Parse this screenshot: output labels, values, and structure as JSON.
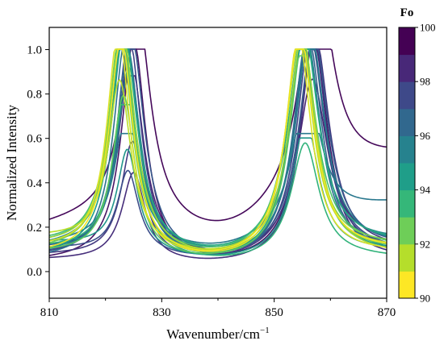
{
  "chart_data": {
    "type": "line",
    "xlabel": "Wavenumber/cm",
    "xlabel_sup": "−1",
    "ylabel": "Normalized Intensity",
    "xlim": [
      810,
      870
    ],
    "ylim": [
      -0.12,
      1.1
    ],
    "x_ticks": [
      810,
      830,
      850,
      870
    ],
    "x_tick_labels": [
      "810",
      "830",
      "850",
      "870"
    ],
    "y_ticks": [
      0.0,
      0.2,
      0.4,
      0.6,
      0.8,
      1.0
    ],
    "y_tick_labels": [
      "0.0",
      "0.2",
      "0.4",
      "0.6",
      "0.8",
      "1.0"
    ],
    "grid": false,
    "colorbar": {
      "title": "Fo",
      "min": 90,
      "max": 100,
      "tick_values": [
        90,
        92,
        94,
        96,
        98,
        100
      ],
      "tick_labels": [
        "90",
        "92",
        "94",
        "96",
        "98",
        "100"
      ],
      "colormap": [
        "#fde725",
        "#b5de2b",
        "#6ece58",
        "#35b779",
        "#1f9e89",
        "#26828e",
        "#31688e",
        "#3e4989",
        "#482878",
        "#440154"
      ]
    },
    "series": [
      {
        "fo": 99.8,
        "peak1": [
          825.5,
          1.0,
          2.9
        ],
        "peak2": [
          857.5,
          1.0,
          3.3
        ],
        "base": [
          0.2,
          0.5
        ]
      },
      {
        "fo": 99.5,
        "peak1": [
          825.0,
          1.0,
          2.6
        ],
        "peak2": [
          857.0,
          1.0,
          3.0
        ],
        "base": [
          0.04,
          0.06
        ]
      },
      {
        "fo": 99.0,
        "peak1": [
          824.5,
          0.88,
          2.7
        ],
        "peak2": [
          856.8,
          0.77,
          3.2
        ],
        "base": [
          0.08,
          0.12
        ]
      },
      {
        "fo": 98.7,
        "peak1": [
          825.0,
          0.4,
          2.5
        ],
        "peak2": [
          857.0,
          1.0,
          2.9
        ],
        "base": [
          0.05,
          0.05
        ]
      },
      {
        "fo": 98.3,
        "peak1": [
          824.8,
          0.52,
          2.4
        ],
        "peak2": [
          857.2,
          1.0,
          3.1
        ],
        "base": [
          0.07,
          0.09
        ]
      },
      {
        "fo": 98.0,
        "peak1": [
          824.2,
          1.0,
          2.6
        ],
        "peak2": [
          856.5,
          1.0,
          3.0
        ],
        "base": [
          0.06,
          0.08
        ]
      },
      {
        "fo": 97.6,
        "peak1": [
          824.0,
          0.37,
          2.3
        ],
        "peak2": [
          856.3,
          1.0,
          3.2
        ],
        "base": [
          0.1,
          0.08
        ]
      },
      {
        "fo": 97.2,
        "peak1": [
          824.6,
          1.0,
          2.8
        ],
        "peak2": [
          857.0,
          0.99,
          3.1
        ],
        "base": [
          0.06,
          0.1
        ]
      },
      {
        "fo": 96.8,
        "peak1": [
          824.0,
          0.92,
          2.5
        ],
        "peak2": [
          856.0,
          1.0,
          3.0
        ],
        "base": [
          0.09,
          0.07
        ]
      },
      {
        "fo": 96.3,
        "peak1": [
          823.6,
          1.0,
          2.6
        ],
        "peak2": [
          855.8,
          0.98,
          2.9
        ],
        "base": [
          0.05,
          0.09
        ]
      },
      {
        "fo": 96.0,
        "peak1": [
          823.8,
          0.59,
          2.5
        ],
        "peak2": [
          855.8,
          0.62,
          3.0
        ],
        "base": [
          0.12,
          0.3
        ]
      },
      {
        "fo": 95.7,
        "peak1": [
          824.2,
          0.84,
          2.6
        ],
        "peak2": [
          856.4,
          1.0,
          3.1
        ],
        "base": [
          0.08,
          0.11
        ]
      },
      {
        "fo": 95.3,
        "peak1": [
          823.4,
          1.0,
          2.7
        ],
        "peak2": [
          855.4,
          1.0,
          3.0
        ],
        "base": [
          0.1,
          0.13
        ]
      },
      {
        "fo": 94.8,
        "peak1": [
          823.9,
          0.45,
          2.2
        ],
        "peak2": [
          855.6,
          0.6,
          2.8
        ],
        "base": [
          0.13,
          0.09
        ]
      },
      {
        "fo": 94.4,
        "peak1": [
          823.0,
          1.0,
          2.5
        ],
        "peak2": [
          855.0,
          0.96,
          2.9
        ],
        "base": [
          0.07,
          0.08
        ]
      },
      {
        "fo": 94.0,
        "peak1": [
          823.3,
          0.97,
          2.8
        ],
        "peak2": [
          855.2,
          1.0,
          3.2
        ],
        "base": [
          0.11,
          0.12
        ]
      },
      {
        "fo": 93.5,
        "peak1": [
          823.6,
          0.75,
          2.6
        ],
        "peak2": [
          855.5,
          0.52,
          3.0
        ],
        "base": [
          0.1,
          0.06
        ]
      },
      {
        "fo": 93.0,
        "peak1": [
          822.8,
          1.0,
          2.6
        ],
        "peak2": [
          854.8,
          1.0,
          3.1
        ],
        "base": [
          0.12,
          0.1
        ]
      },
      {
        "fo": 92.5,
        "peak1": [
          823.2,
          0.72,
          2.4
        ],
        "peak2": [
          855.1,
          0.97,
          2.8
        ],
        "base": [
          0.08,
          0.09
        ]
      },
      {
        "fo": 92.0,
        "peak1": [
          822.6,
          1.0,
          2.5
        ],
        "peak2": [
          854.6,
          0.96,
          3.0
        ],
        "base": [
          0.09,
          0.11
        ]
      },
      {
        "fo": 91.5,
        "peak1": [
          823.0,
          1.0,
          2.7
        ],
        "peak2": [
          855.0,
          1.0,
          2.9
        ],
        "base": [
          0.11,
          0.07
        ]
      },
      {
        "fo": 91.0,
        "peak1": [
          822.5,
          0.74,
          2.4
        ],
        "peak2": [
          854.5,
          1.0,
          2.8
        ],
        "base": [
          0.15,
          0.1
        ]
      },
      {
        "fo": 90.5,
        "peak1": [
          822.3,
          1.0,
          2.4
        ],
        "peak2": [
          854.3,
          0.99,
          2.7
        ],
        "base": [
          0.1,
          0.08
        ]
      },
      {
        "fo": 90.2,
        "peak1": [
          822.8,
          0.98,
          2.6
        ],
        "peak2": [
          854.6,
          1.0,
          3.0
        ],
        "base": [
          0.07,
          0.09
        ]
      }
    ]
  }
}
